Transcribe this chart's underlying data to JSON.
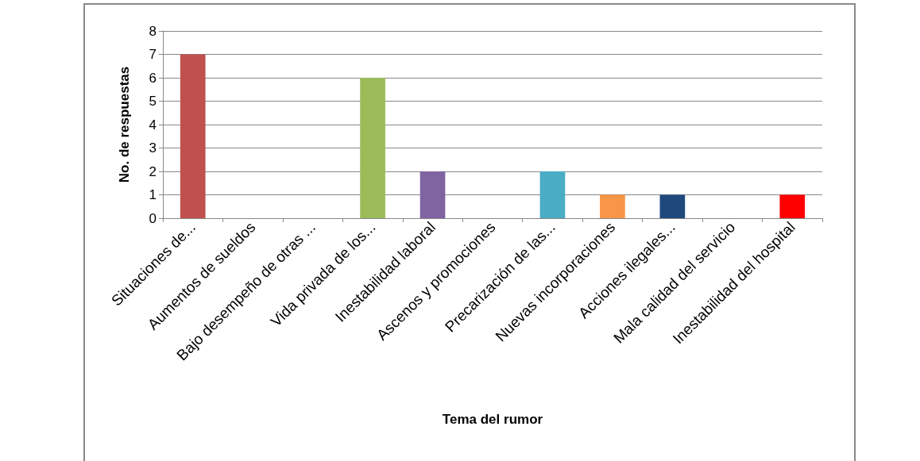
{
  "chart_data": {
    "type": "bar",
    "xlabel": "Tema del rumor",
    "ylabel": "No. de respuestas",
    "categories": [
      "Situaciones de...",
      "Aumentos de sueldos",
      "Bajo desempeño de otras ...",
      "Vida privada de los...",
      "Inestabilidad laboral",
      "Ascenos y promociones",
      "Precarización de las...",
      "Nuevas incorporaciones",
      "Acciones ilegales...",
      "Mala calidad del servicio",
      "Inestabilidad del hospital"
    ],
    "values": [
      7,
      0,
      0,
      6,
      2,
      0,
      2,
      1,
      1,
      0,
      1
    ],
    "colors": [
      "#c0504d",
      "#4f81bd",
      "#2c4d75",
      "#9bbb59",
      "#8064a2",
      "#772c2a",
      "#4bacc6",
      "#f79646",
      "#1f497d",
      "#5f7530",
      "#ff0000"
    ],
    "ylim": [
      0,
      8
    ],
    "yticks": [
      0,
      1,
      2,
      3,
      4,
      5,
      6,
      7,
      8
    ],
    "grid": "y"
  }
}
